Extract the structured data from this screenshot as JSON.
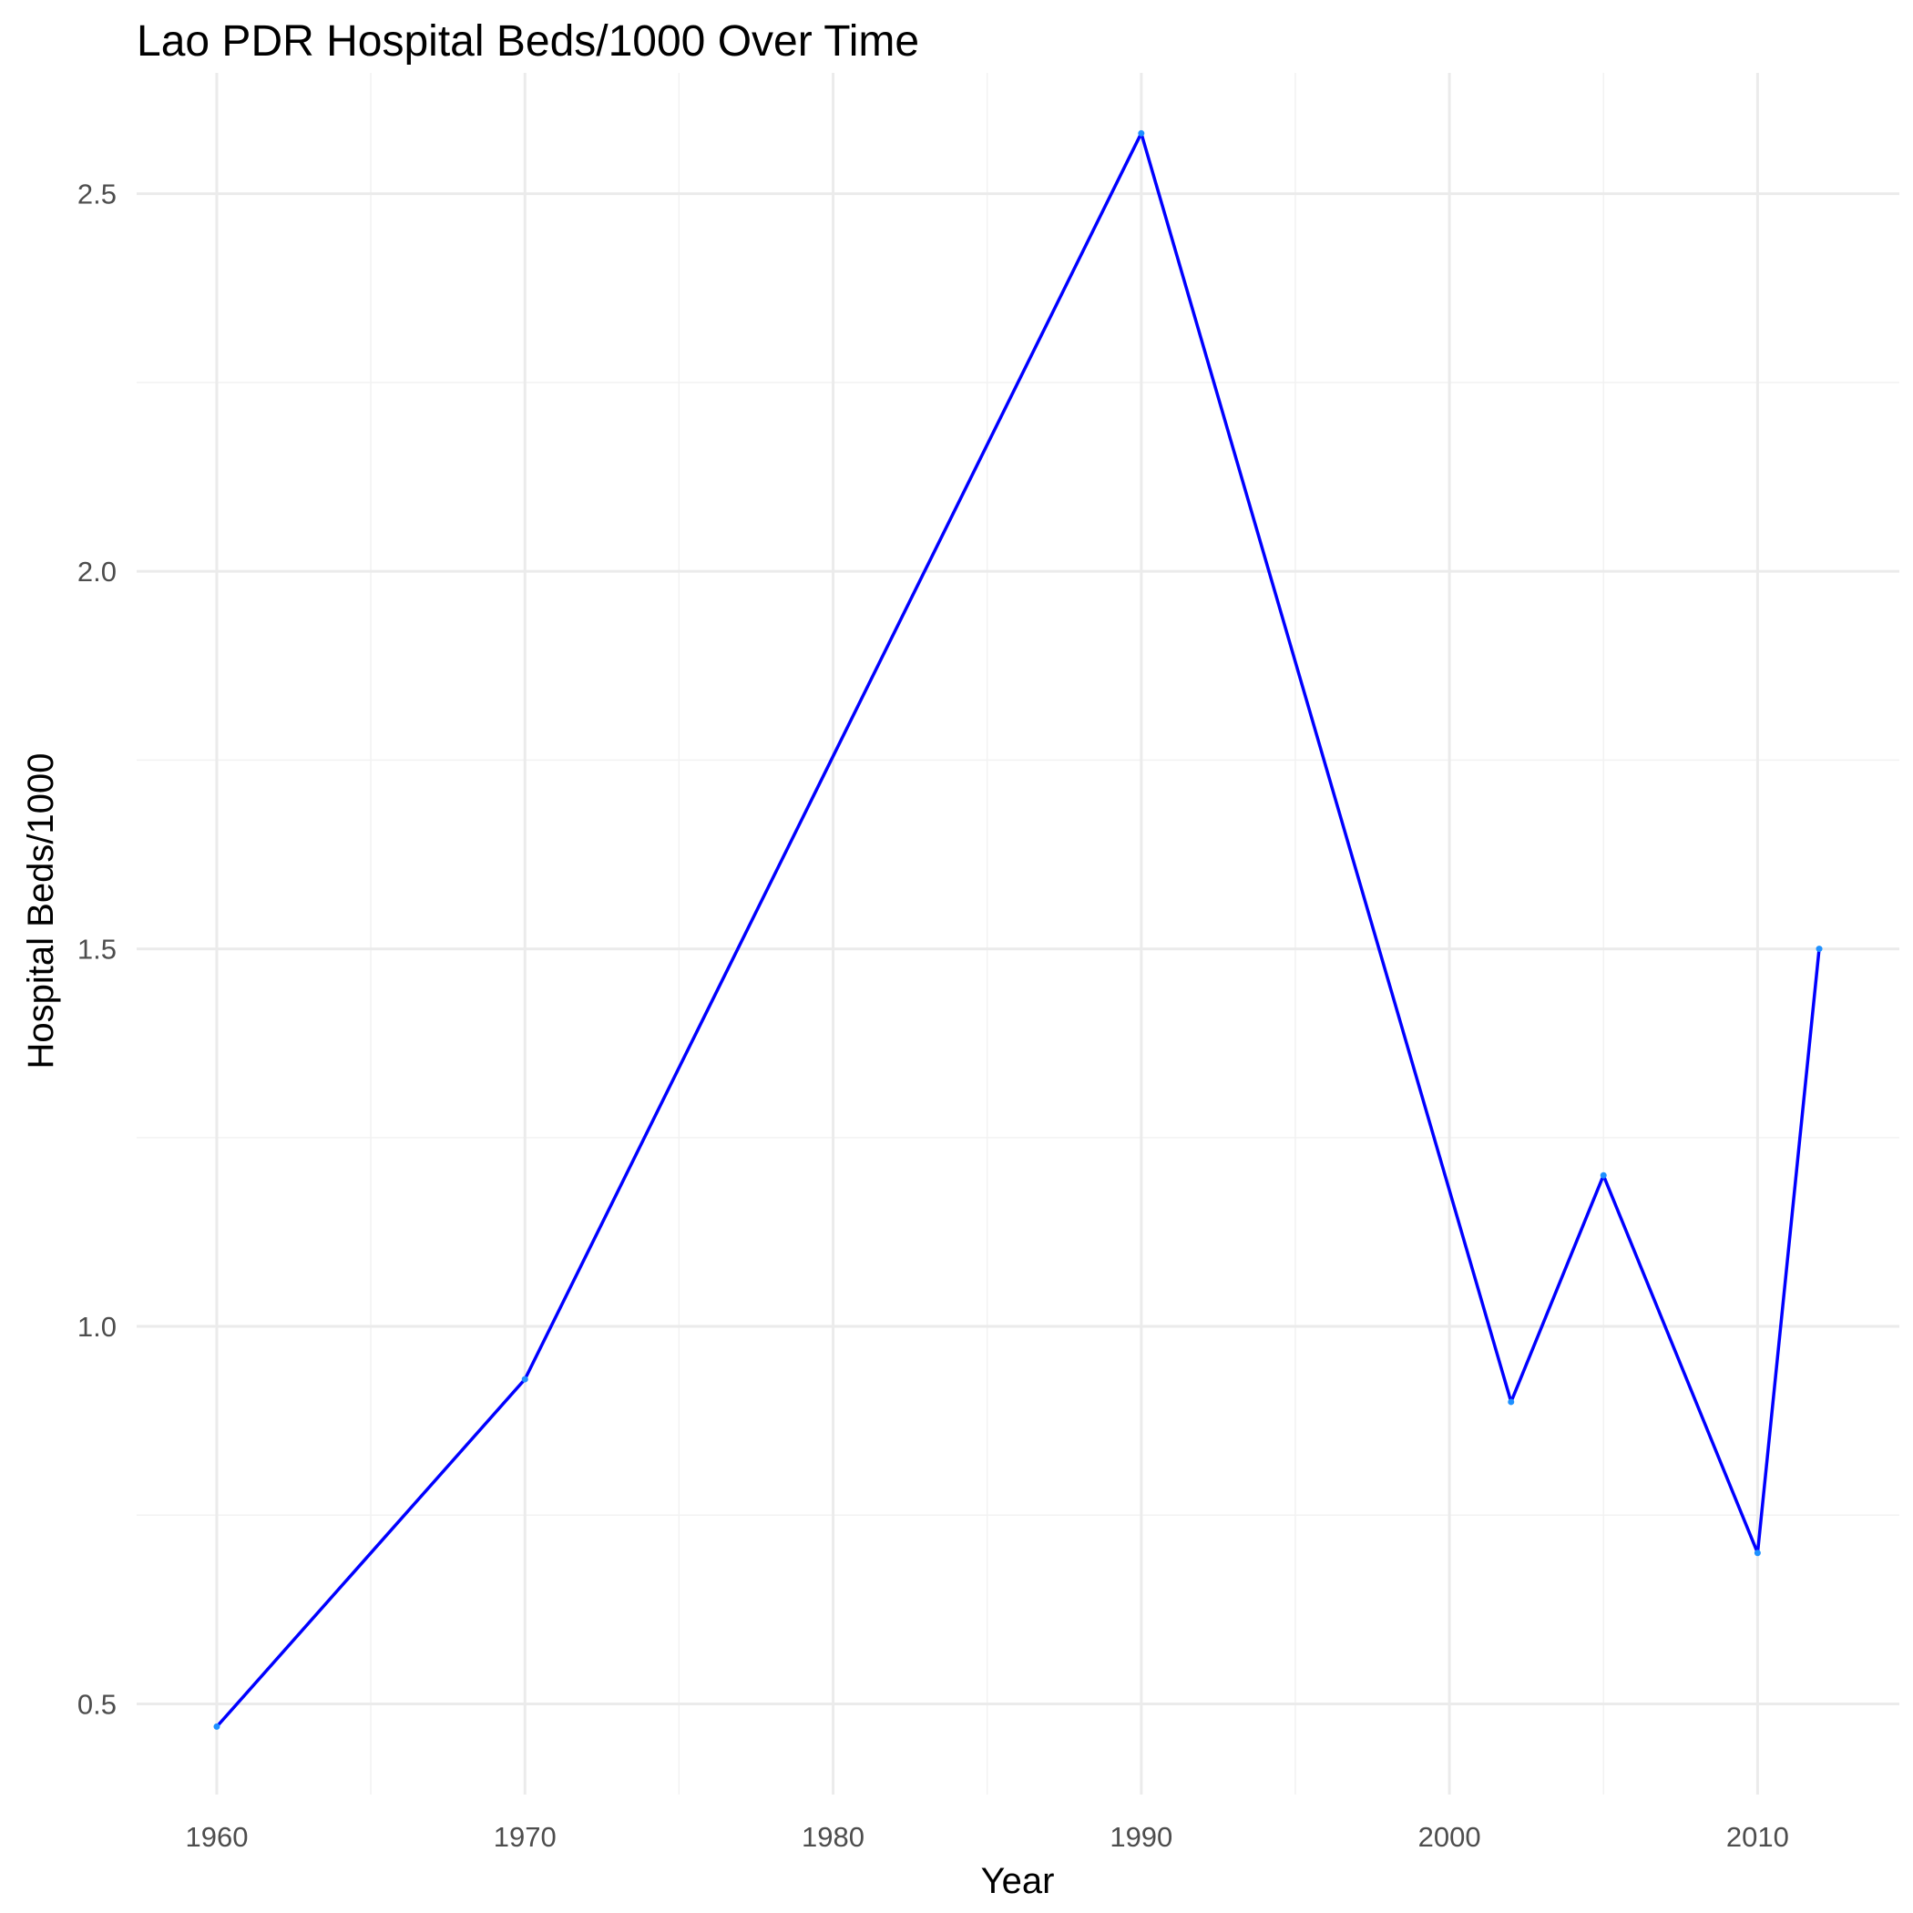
{
  "chart_data": {
    "type": "line",
    "title": "Lao PDR Hospital Beds/1000 Over Time",
    "xlabel": "Year",
    "ylabel": "Hospital Beds/1000",
    "x_ticks": [
      1960,
      1970,
      1980,
      1990,
      2000,
      2010
    ],
    "y_ticks": [
      "0.5",
      "1.0",
      "1.5",
      "2.0",
      "2.5"
    ],
    "xlim": [
      1957.4,
      2014.6
    ],
    "ylim": [
      0.38,
      2.66
    ],
    "grid": true,
    "legend": "none",
    "series": [
      {
        "color": "#0000ff",
        "point_color": "#1e90ff",
        "x": [
          1960,
          1970,
          1990,
          2002,
          2005,
          2010,
          2012
        ],
        "y": [
          0.47,
          0.93,
          2.58,
          0.9,
          1.2,
          0.7,
          1.5
        ]
      }
    ]
  }
}
